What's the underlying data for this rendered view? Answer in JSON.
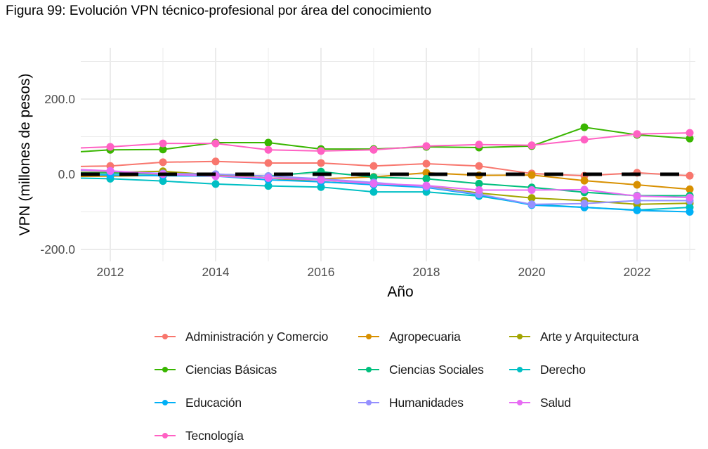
{
  "title": "Figura 99: Evolución VPN técnico-profesional por área del conocimiento",
  "chart_data": {
    "type": "line",
    "title": "Figura 99: Evolución VPN técnico-profesional por área del conocimiento",
    "xlabel": "Año",
    "ylabel": "VPN (millones de pesos)",
    "x": [
      2011,
      2012,
      2013,
      2014,
      2015,
      2016,
      2017,
      2018,
      2019,
      2020,
      2021,
      2022,
      2023
    ],
    "xlim": [
      2011.45,
      2023.1
    ],
    "ylim": [
      -235,
      330
    ],
    "x_ticks": [
      2012,
      2014,
      2016,
      2018,
      2020,
      2022
    ],
    "x_tick_labels": [
      "2012",
      "2014",
      "2016",
      "2018",
      "2020",
      "2022"
    ],
    "y_ticks": [
      200,
      0,
      -200
    ],
    "y_tick_labels": [
      "200.0",
      "0.0",
      "-200.0"
    ],
    "y_minor_gridlines": [
      300,
      100,
      -100
    ],
    "grid": true,
    "reference_line": {
      "y": 0,
      "style": "dashed",
      "color": "#000000"
    },
    "legend_position": "bottom",
    "series": [
      {
        "name": "Administración y Comercio",
        "color": "#F8766D",
        "values": [
          20,
          22,
          32,
          34,
          30,
          30,
          22,
          28,
          22,
          2,
          -4,
          4,
          -4
        ]
      },
      {
        "name": "Agropecuaria",
        "color": "#D89000",
        "values": [
          -6,
          -5,
          -3,
          -2,
          -10,
          -12,
          -7,
          4,
          -3,
          -2,
          -17,
          -28,
          -40
        ]
      },
      {
        "name": "Arte y Arquitectura",
        "color": "#A3A500",
        "values": [
          5,
          5,
          8,
          -2,
          -10,
          -20,
          -27,
          -32,
          -50,
          -63,
          -70,
          -80,
          -77
        ]
      },
      {
        "name": "Ciencias Básicas",
        "color": "#39B600",
        "values": [
          56,
          65,
          66,
          84,
          84,
          67,
          67,
          73,
          71,
          75,
          125,
          105,
          95
        ]
      },
      {
        "name": "Ciencias Sociales",
        "color": "#00BF7D",
        "values": [
          4,
          3,
          0,
          0,
          -5,
          7,
          -8,
          -12,
          -25,
          -35,
          -48,
          -57,
          -57
        ]
      },
      {
        "name": "Derecho",
        "color": "#00BFC4",
        "values": [
          -9,
          -12,
          -18,
          -26,
          -31,
          -34,
          -47,
          -47,
          -58,
          -80,
          -88,
          -95,
          -88
        ]
      },
      {
        "name": "Educación",
        "color": "#00B0F6",
        "values": [
          0,
          -2,
          -4,
          -5,
          -15,
          -20,
          -28,
          -35,
          -55,
          -82,
          -88,
          -96,
          -100
        ]
      },
      {
        "name": "Humanidades",
        "color": "#9590FF",
        "values": [
          12,
          8,
          2,
          0,
          -5,
          -12,
          -22,
          -33,
          -53,
          -80,
          -78,
          -70,
          -70
        ]
      },
      {
        "name": "Salud",
        "color": "#E76BF3",
        "values": [
          15,
          9,
          0,
          -5,
          -10,
          -15,
          -25,
          -30,
          -42,
          -42,
          -41,
          -58,
          -62
        ]
      },
      {
        "name": "Tecnología",
        "color": "#FF61C3",
        "values": [
          68,
          73,
          82,
          82,
          65,
          62,
          65,
          75,
          79,
          77,
          92,
          107,
          110
        ]
      }
    ]
  }
}
